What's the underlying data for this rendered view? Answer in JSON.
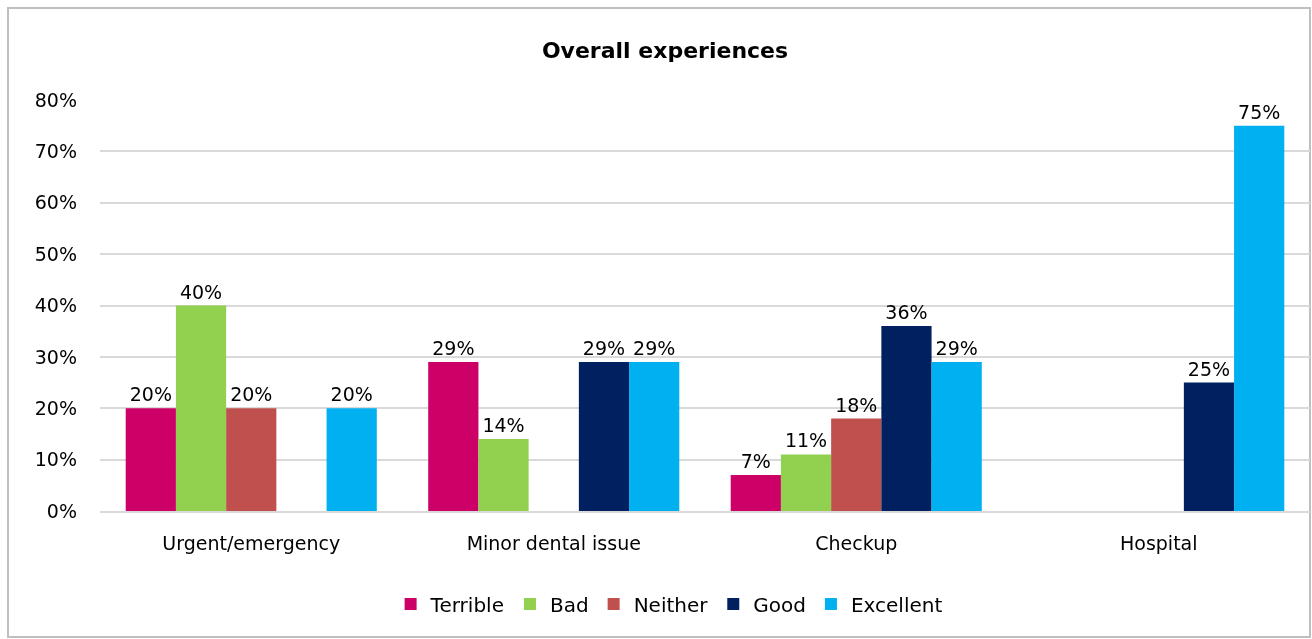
{
  "chart_data": {
    "type": "bar",
    "title": "Overall experiences",
    "categories": [
      "Urgent/emergency",
      "Minor dental issue",
      "Checkup",
      "Hospital"
    ],
    "series": [
      {
        "name": "Terrible",
        "color": "#cc0066",
        "values": [
          20,
          29,
          7,
          null
        ],
        "value_labels": [
          "20%",
          "29%",
          "7%",
          null
        ]
      },
      {
        "name": "Bad",
        "color": "#92d050",
        "values": [
          40,
          14,
          11,
          null
        ],
        "value_labels": [
          "40%",
          "14%",
          "11%",
          null
        ]
      },
      {
        "name": "Neither",
        "color": "#c0504d",
        "values": [
          20,
          null,
          18,
          null
        ],
        "value_labels": [
          "20%",
          null,
          "18%",
          null
        ]
      },
      {
        "name": "Good",
        "color": "#002060",
        "values": [
          null,
          29,
          36,
          25
        ],
        "value_labels": [
          null,
          "29%",
          "36%",
          "25%"
        ]
      },
      {
        "name": "Excellent",
        "color": "#00b0f0",
        "values": [
          20,
          29,
          29,
          75
        ],
        "value_labels": [
          "20%",
          "29%",
          "29%",
          "75%"
        ]
      }
    ],
    "ylim": [
      0,
      80
    ],
    "yticks": [
      {
        "value": 0,
        "label": "0%"
      },
      {
        "value": 10,
        "label": "10%"
      },
      {
        "value": 20,
        "label": "20%"
      },
      {
        "value": 30,
        "label": "30%"
      },
      {
        "value": 40,
        "label": "40%"
      },
      {
        "value": 50,
        "label": "50%"
      },
      {
        "value": 60,
        "label": "60%"
      },
      {
        "value": 70,
        "label": "70%"
      },
      {
        "value": 80,
        "label": "80%"
      }
    ],
    "grid": "y",
    "legend": "bottom"
  }
}
